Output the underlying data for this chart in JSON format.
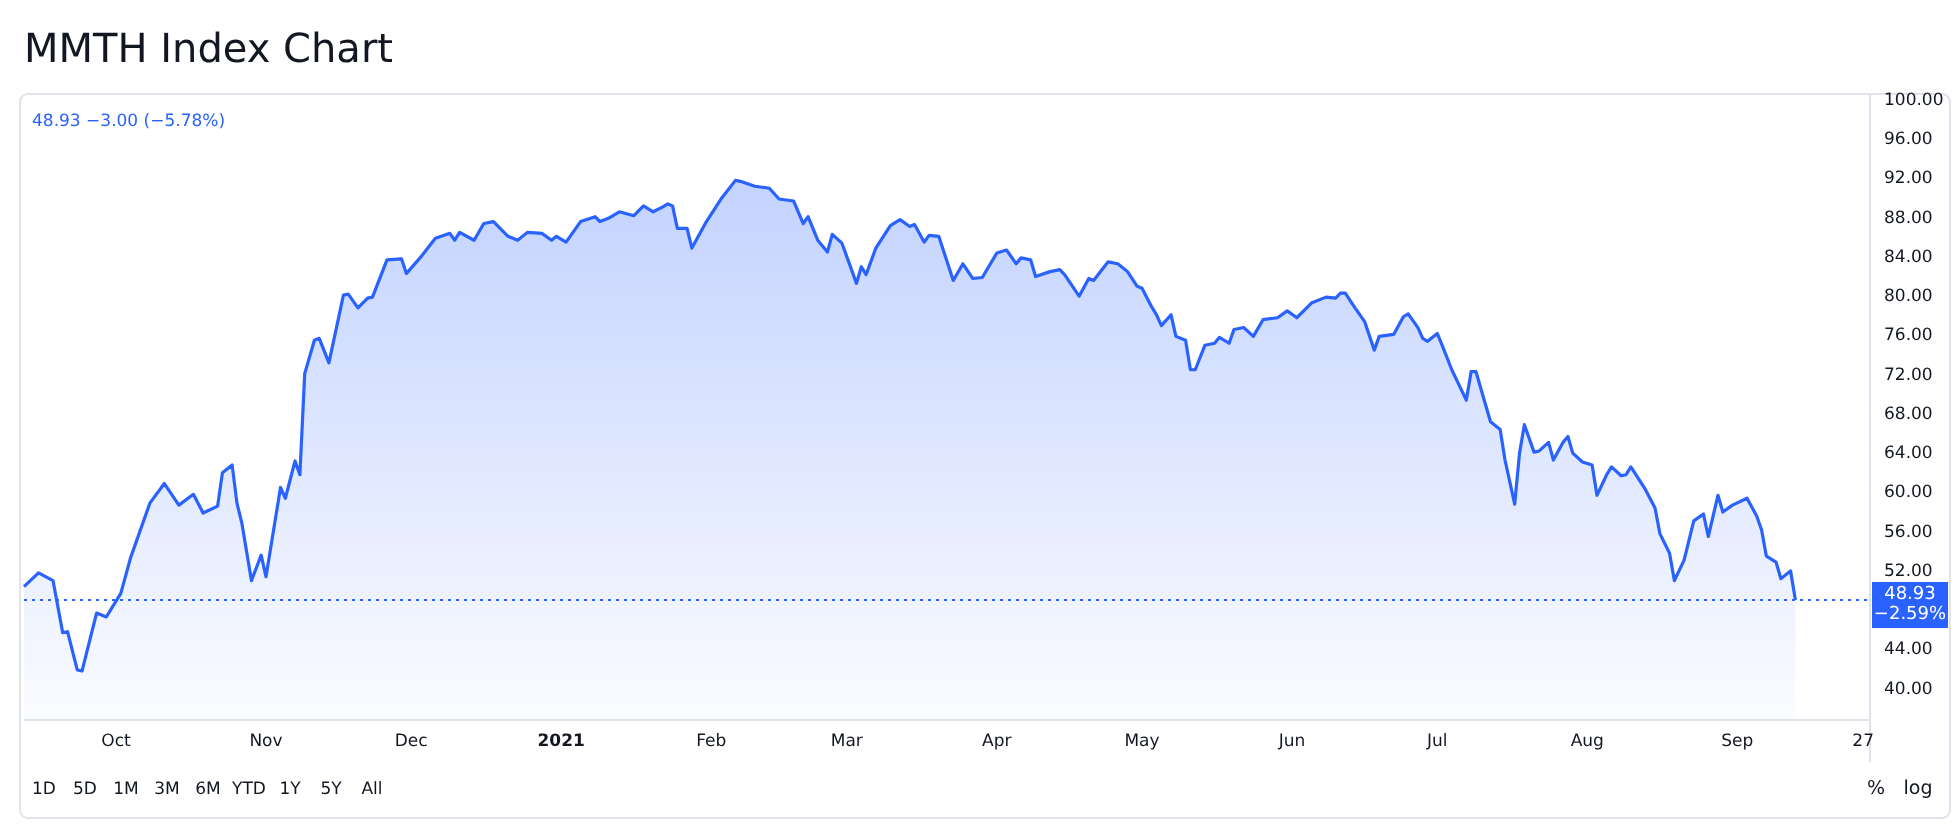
{
  "chart_data": {
    "type": "area",
    "title": "MMTH Index Chart",
    "x": [
      "2020-09-12",
      "2020-09-15",
      "2020-09-18",
      "2020-09-20",
      "2020-09-21",
      "2020-09-23",
      "2020-09-24",
      "2020-09-27",
      "2020-09-29",
      "2020-10-02",
      "2020-10-04",
      "2020-10-08",
      "2020-10-11",
      "2020-10-14",
      "2020-10-17",
      "2020-10-19",
      "2020-10-22",
      "2020-10-23",
      "2020-10-25",
      "2020-10-26",
      "2020-10-27",
      "2020-10-29",
      "2020-10-31",
      "2020-11-01",
      "2020-11-04",
      "2020-11-05",
      "2020-11-07",
      "2020-11-08",
      "2020-11-09",
      "2020-11-11",
      "2020-11-12",
      "2020-11-14",
      "2020-11-17",
      "2020-11-18",
      "2020-11-20",
      "2020-11-22",
      "2020-11-23",
      "2020-11-26",
      "2020-11-29",
      "2020-11-30",
      "2020-12-03",
      "2020-12-06",
      "2020-12-09",
      "2020-12-10",
      "2020-12-11",
      "2020-12-14",
      "2020-12-16",
      "2020-12-18",
      "2020-12-21",
      "2020-12-23",
      "2020-12-25",
      "2020-12-28",
      "2020-12-30",
      "2020-12-31",
      "2021-01-02",
      "2021-01-05",
      "2021-01-08",
      "2021-01-09",
      "2021-01-11",
      "2021-01-13",
      "2021-01-16",
      "2021-01-18",
      "2021-01-20",
      "2021-01-22",
      "2021-01-23",
      "2021-01-24",
      "2021-01-25",
      "2021-01-27",
      "2021-01-28",
      "2021-01-31",
      "2021-02-03",
      "2021-02-06",
      "2021-02-07",
      "2021-02-10",
      "2021-02-13",
      "2021-02-15",
      "2021-02-18",
      "2021-02-20",
      "2021-02-21",
      "2021-02-23",
      "2021-02-25",
      "2021-02-26",
      "2021-02-28",
      "2021-03-03",
      "2021-03-04",
      "2021-03-05",
      "2021-03-07",
      "2021-03-10",
      "2021-03-12",
      "2021-03-14",
      "2021-03-15",
      "2021-03-17",
      "2021-03-18",
      "2021-03-20",
      "2021-03-23",
      "2021-03-25",
      "2021-03-27",
      "2021-03-29",
      "2021-04-01",
      "2021-04-03",
      "2021-04-05",
      "2021-04-06",
      "2021-04-08",
      "2021-04-09",
      "2021-04-12",
      "2021-04-14",
      "2021-04-15",
      "2021-04-18",
      "2021-04-20",
      "2021-04-21",
      "2021-04-24",
      "2021-04-26",
      "2021-04-28",
      "2021-04-30",
      "2021-05-01",
      "2021-05-03",
      "2021-05-04",
      "2021-05-05",
      "2021-05-07",
      "2021-05-08",
      "2021-05-10",
      "2021-05-11",
      "2021-05-12",
      "2021-05-14",
      "2021-05-16",
      "2021-05-17",
      "2021-05-19",
      "2021-05-20",
      "2021-05-22",
      "2021-05-24",
      "2021-05-26",
      "2021-05-29",
      "2021-05-31",
      "2021-06-02",
      "2021-06-05",
      "2021-06-08",
      "2021-06-10",
      "2021-06-11",
      "2021-06-12",
      "2021-06-14",
      "2021-06-16",
      "2021-06-18",
      "2021-06-19",
      "2021-06-22",
      "2021-06-24",
      "2021-06-25",
      "2021-06-27",
      "2021-06-28",
      "2021-06-29",
      "2021-07-01",
      "2021-07-02",
      "2021-07-04",
      "2021-07-07",
      "2021-07-08",
      "2021-07-09",
      "2021-07-12",
      "2021-07-14",
      "2021-07-15",
      "2021-07-17",
      "2021-07-18",
      "2021-07-19",
      "2021-07-21",
      "2021-07-22",
      "2021-07-24",
      "2021-07-25",
      "2021-07-27",
      "2021-07-28",
      "2021-07-29",
      "2021-07-31",
      "2021-08-02",
      "2021-08-03",
      "2021-08-05",
      "2021-08-06",
      "2021-08-08",
      "2021-08-09",
      "2021-08-10",
      "2021-08-13",
      "2021-08-15",
      "2021-08-16",
      "2021-08-18",
      "2021-08-19",
      "2021-08-21",
      "2021-08-23",
      "2021-08-25",
      "2021-08-26",
      "2021-08-28",
      "2021-08-29",
      "2021-08-31",
      "2021-09-03",
      "2021-09-05",
      "2021-09-06",
      "2021-09-07",
      "2021-09-09",
      "2021-09-10",
      "2021-09-12",
      "2021-09-13"
    ],
    "series": [
      {
        "color": "#2962ff",
        "values": [
          50.3,
          51.7,
          50.9,
          45.6,
          45.7,
          41.8,
          41.7,
          47.6,
          47.2,
          49.6,
          53.2,
          58.8,
          60.8,
          58.6,
          59.7,
          57.8,
          58.5,
          61.9,
          62.7,
          58.8,
          56.8,
          50.9,
          53.5,
          51.3,
          60.4,
          59.3,
          63.1,
          61.7,
          72.0,
          75.4,
          75.6,
          73.1,
          80.0,
          80.1,
          78.7,
          79.7,
          79.8,
          83.6,
          83.7,
          82.2,
          83.9,
          85.8,
          86.3,
          85.6,
          86.4,
          85.6,
          87.3,
          87.5,
          86.0,
          85.6,
          86.4,
          86.3,
          85.6,
          86.0,
          85.4,
          87.5,
          88.0,
          87.5,
          87.9,
          88.5,
          88.1,
          89.1,
          88.5,
          89.0,
          89.3,
          89.1,
          86.8,
          86.8,
          84.8,
          87.5,
          89.8,
          91.7,
          91.6,
          91.1,
          90.9,
          89.8,
          89.6,
          87.3,
          88.0,
          85.6,
          84.4,
          86.2,
          85.3,
          81.2,
          82.9,
          82.1,
          84.8,
          87.1,
          87.7,
          87.0,
          87.2,
          85.4,
          86.1,
          86.0,
          81.5,
          83.2,
          81.7,
          81.8,
          84.3,
          84.6,
          83.2,
          83.8,
          83.6,
          81.9,
          82.4,
          82.6,
          82.1,
          79.9,
          81.7,
          81.5,
          83.4,
          83.2,
          82.4,
          80.9,
          80.7,
          78.8,
          78.0,
          76.9,
          78.0,
          75.8,
          75.4,
          72.4,
          72.4,
          74.9,
          75.1,
          75.7,
          75.1,
          76.5,
          76.7,
          75.8,
          77.5,
          77.7,
          78.4,
          77.7,
          79.2,
          79.8,
          79.7,
          80.2,
          80.2,
          78.7,
          77.3,
          74.4,
          75.8,
          76.0,
          77.8,
          78.1,
          76.7,
          75.6,
          75.3,
          76.1,
          74.9,
          72.4,
          69.3,
          72.2,
          72.2,
          67.1,
          66.3,
          63.2,
          58.7,
          63.9,
          66.8,
          64.0,
          64.1,
          65.0,
          63.2,
          65.0,
          65.6,
          63.9,
          63.0,
          62.7,
          59.6,
          61.7,
          62.5,
          61.6,
          61.7,
          62.5,
          60.2,
          58.3,
          55.7,
          53.7,
          50.9,
          53.0,
          57.0,
          57.7,
          55.4,
          59.6,
          57.9,
          58.6,
          59.3,
          57.5,
          56.1,
          53.4,
          52.8,
          51.1,
          51.9,
          48.93
        ]
      }
    ],
    "xlim": [
      "2020-09-12",
      "2021-09-28"
    ],
    "xticks": [
      {
        "value": "2020-10-01",
        "label": "Oct"
      },
      {
        "value": "2020-11-01",
        "label": "Nov"
      },
      {
        "value": "2020-12-01",
        "label": "Dec"
      },
      {
        "value": "2021-01-01",
        "label": "2021"
      },
      {
        "value": "2021-02-01",
        "label": "Feb"
      },
      {
        "value": "2021-03-01",
        "label": "Mar"
      },
      {
        "value": "2021-04-01",
        "label": "Apr"
      },
      {
        "value": "2021-05-01",
        "label": "May"
      },
      {
        "value": "2021-06-01",
        "label": "Jun"
      },
      {
        "value": "2021-07-01",
        "label": "Jul"
      },
      {
        "value": "2021-08-01",
        "label": "Aug"
      },
      {
        "value": "2021-09-01",
        "label": "Sep"
      },
      {
        "value": "2021-09-27",
        "label": "27"
      }
    ],
    "ylim": [
      36.7,
      100.3
    ],
    "yticks": [
      {
        "value": 40,
        "label": "40.00"
      },
      {
        "value": 44,
        "label": "44.00"
      },
      {
        "value": 52,
        "label": "52.00"
      },
      {
        "value": 56,
        "label": "56.00"
      },
      {
        "value": 60,
        "label": "60.00"
      },
      {
        "value": 64,
        "label": "64.00"
      },
      {
        "value": 68,
        "label": "68.00"
      },
      {
        "value": 72,
        "label": "72.00"
      },
      {
        "value": 76,
        "label": "76.00"
      },
      {
        "value": 80,
        "label": "80.00"
      },
      {
        "value": 84,
        "label": "84.00"
      },
      {
        "value": 88,
        "label": "88.00"
      },
      {
        "value": 92,
        "label": "92.00"
      },
      {
        "value": 96,
        "label": "96.00"
      },
      {
        "value": 100,
        "label": "100.00"
      }
    ],
    "ref_lines": [
      {
        "axis": "y",
        "value": 48.93,
        "label": "48.93\n−2.59%",
        "color": "#2962ff",
        "line_style": "dotted"
      }
    ],
    "annotations": [
      "48.93 −3.00 (−5.78%)",
      "1D",
      "5D",
      "1M",
      "3M",
      "6M",
      "YTD",
      "1Y",
      "5Y",
      "All",
      "%",
      "log"
    ]
  }
}
